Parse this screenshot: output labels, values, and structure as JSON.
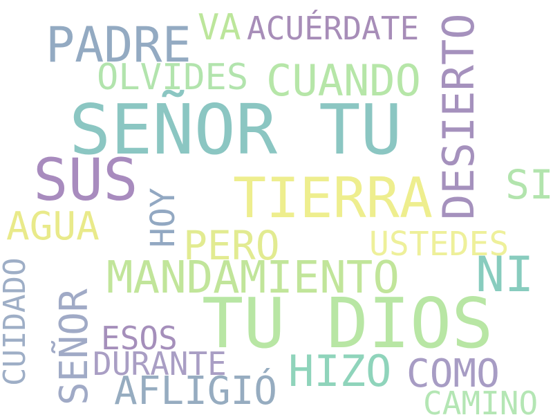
{
  "words": {
    "padre": {
      "text": "PADRE",
      "color": "#93aac2"
    },
    "va": {
      "text": "VA",
      "color": "#bce69b"
    },
    "acuerdate": {
      "text": "ACUÉRDATE",
      "color": "#a78db8"
    },
    "desierto": {
      "text": "DESIERTO",
      "color": "#a591bd"
    },
    "olvides": {
      "text": "OLVIDES",
      "color": "#b2e4ad"
    },
    "cuando": {
      "text": "CUANDO",
      "color": "#b6e6a8"
    },
    "senor_tu": {
      "text": "SEÑOR TU",
      "color": "#8bc6c2"
    },
    "sus": {
      "text": "SUS",
      "color": "#a88bbe"
    },
    "hoy": {
      "text": "HOY",
      "color": "#92a8c2"
    },
    "tierra": {
      "text": "TIERRA",
      "color": "#eeee8e"
    },
    "si": {
      "text": "SI",
      "color": "#b2e4ad"
    },
    "agua": {
      "text": "AGUA",
      "color": "#e9ea8a"
    },
    "pero": {
      "text": "PERO",
      "color": "#e2eb91"
    },
    "ustedes": {
      "text": "USTEDES",
      "color": "#eef09a"
    },
    "cuidado": {
      "text": "CUIDADO",
      "color": "#9eaec6"
    },
    "mandamiento": {
      "text": "MANDAMIENTO",
      "color": "#c1e59a"
    },
    "ni": {
      "text": "NI",
      "color": "#88ccbe"
    },
    "senor": {
      "text": "SEÑOR",
      "color": "#a0aac6"
    },
    "tu_dios": {
      "text": "TU DIOS",
      "color": "#b8e6a4"
    },
    "esos": {
      "text": "ESOS",
      "color": "#a58fbb"
    },
    "durante": {
      "text": "DURANTE",
      "color": "#a99ec4"
    },
    "hizo": {
      "text": "HIZO",
      "color": "#8fd4bb"
    },
    "como": {
      "text": "COMO",
      "color": "#a79cc4"
    },
    "aflig": {
      "text": "AFLIGIÓ",
      "color": "#96acc0"
    },
    "camino": {
      "text": "CAMINO",
      "color": "#b4e6b4"
    }
  }
}
